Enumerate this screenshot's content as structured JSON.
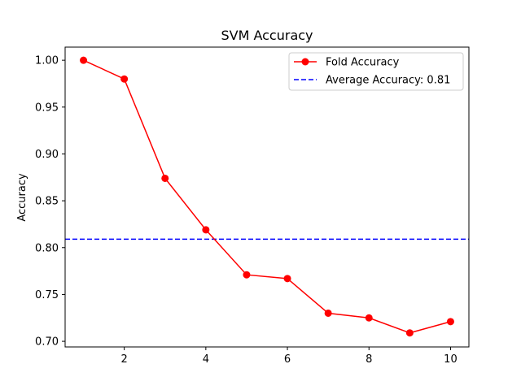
{
  "chart_data": {
    "type": "line",
    "title": "SVM Accuracy",
    "xlabel": "",
    "ylabel": "Accuracy",
    "xlim": [
      0.55,
      10.45
    ],
    "ylim": [
      0.694,
      1.014
    ],
    "x_ticks": [
      2,
      4,
      6,
      8,
      10
    ],
    "x_tick_labels": [
      "2",
      "4",
      "6",
      "8",
      "10"
    ],
    "y_ticks": [
      0.7,
      0.75,
      0.8,
      0.85,
      0.9,
      0.95,
      1.0
    ],
    "y_tick_labels": [
      "0.70",
      "0.75",
      "0.80",
      "0.85",
      "0.90",
      "0.95",
      "1.00"
    ],
    "grid": false,
    "legend_position": "top-right",
    "series": [
      {
        "name": "Fold Accuracy",
        "color": "#ff0000",
        "style": "solid",
        "marker": "circle",
        "x": [
          1,
          2,
          3,
          4,
          5,
          6,
          7,
          8,
          9,
          10
        ],
        "values": [
          1.0,
          0.98,
          0.874,
          0.819,
          0.771,
          0.767,
          0.73,
          0.725,
          0.709,
          0.721
        ]
      }
    ],
    "reference_lines": [
      {
        "name": "Average Accuracy: 0.81",
        "orientation": "horizontal",
        "value": 0.809,
        "color": "#0000ff",
        "style": "dashed"
      }
    ]
  }
}
